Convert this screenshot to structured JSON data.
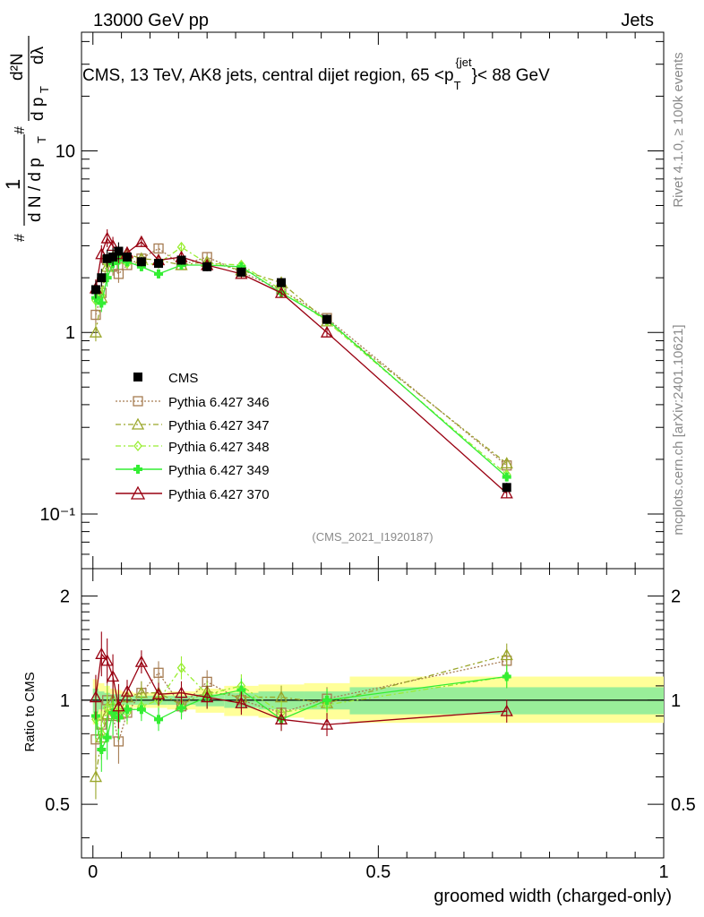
{
  "header": {
    "left": "13000 GeV pp",
    "right": "Jets"
  },
  "side_text": {
    "rivet": "Rivet 4.1.0, ≥ 100k events",
    "mcplots": "mcplots.cern.ch [arXiv:2401.10621]"
  },
  "chart_data": [
    {
      "type": "line",
      "panel": "main",
      "title": "CMS, 13 TeV, AK8 jets, central dijet region, 65 <p_T^{jet}< 88 GeV",
      "title_parts": {
        "pre": "CMS, 13 TeV, AK8 jets, central dijet region, 65 <p",
        "sub": "T",
        "sup": "{jet",
        "post": "}< 88 GeV"
      },
      "watermark": "(CMS_2021_I1920187)",
      "ylabel": "1/(dN/dp_T) d²N/(dp_T dλ)",
      "ylabel_parts": {
        "hash1": "#",
        "one": "1",
        "den": "d N / d p",
        "T": "T",
        "hash2": "#",
        "d2N": "d²N",
        "dpT": "d p",
        "dlambda": "dλ"
      },
      "yscale": "log",
      "ylim": [
        0.05,
        45
      ],
      "ytick_labels": [
        {
          "v": 0.1,
          "t": "10⁻¹"
        },
        {
          "v": 1,
          "t": "1"
        },
        {
          "v": 10,
          "t": "10"
        }
      ],
      "xlim": [
        -0.02,
        1.0
      ],
      "legend_position": "middle-left",
      "x": [
        0.005,
        0.015,
        0.025,
        0.035,
        0.045,
        0.06,
        0.085,
        0.115,
        0.155,
        0.2,
        0.26,
        0.33,
        0.41,
        0.725
      ],
      "series": [
        {
          "name": "CMS",
          "color": "#000000",
          "marker": "square-filled",
          "line": "none",
          "values": [
            1.72,
            2.0,
            2.55,
            2.6,
            2.8,
            2.6,
            2.45,
            2.4,
            2.5,
            2.3,
            2.15,
            1.88,
            1.18,
            0.14
          ]
        },
        {
          "name": "Pythia 6.427 346",
          "color": "#a67c52",
          "marker": "square-open",
          "line": "dotted",
          "values": [
            1.25,
            1.65,
            2.5,
            2.3,
            2.1,
            2.35,
            2.55,
            2.9,
            2.35,
            2.6,
            2.15,
            1.72,
            1.2,
            0.185
          ]
        },
        {
          "name": "Pythia 6.427 347",
          "color": "#9aa62a",
          "marker": "triangle-open",
          "line": "dashdot",
          "values": [
            1.0,
            1.55,
            2.3,
            2.6,
            2.55,
            2.7,
            2.55,
            2.5,
            2.35,
            2.45,
            2.2,
            1.88,
            1.15,
            0.19
          ]
        },
        {
          "name": "Pythia 6.427 348",
          "color": "#99ee33",
          "marker": "diamond-open",
          "line": "dashdot",
          "values": [
            1.5,
            1.6,
            2.4,
            2.5,
            2.6,
            2.4,
            2.35,
            2.4,
            2.95,
            2.4,
            2.35,
            1.72,
            1.15,
            0.165
          ]
        },
        {
          "name": "Pythia 6.427 349",
          "color": "#33ee33",
          "marker": "cross-filled",
          "line": "solid",
          "values": [
            1.55,
            1.45,
            2.0,
            2.4,
            2.5,
            2.45,
            2.3,
            2.1,
            2.35,
            2.35,
            2.3,
            1.65,
            1.18,
            0.16
          ]
        },
        {
          "name": "Pythia 6.427 370",
          "color": "#990011",
          "marker": "triangle-open",
          "line": "solid",
          "values": [
            1.75,
            2.7,
            3.3,
            3.0,
            2.7,
            2.75,
            3.15,
            2.5,
            2.6,
            2.35,
            2.1,
            1.65,
            1.0,
            0.13
          ]
        }
      ]
    },
    {
      "type": "line",
      "panel": "ratio",
      "ylabel": "Ratio to CMS",
      "xlabel": "groomed width (charged-only)",
      "ylim": [
        0.35,
        2.4
      ],
      "yscale": "log",
      "ytick_labels": [
        {
          "v": 0.5,
          "t": "0.5"
        },
        {
          "v": 1,
          "t": "1"
        },
        {
          "v": 2,
          "t": "2"
        }
      ],
      "xtick_labels": [
        {
          "v": 0,
          "t": "0"
        },
        {
          "v": 0.5,
          "t": "0.5"
        },
        {
          "v": 1,
          "t": "1"
        }
      ],
      "xlim": [
        -0.02,
        1.0
      ],
      "x": [
        0.005,
        0.015,
        0.025,
        0.035,
        0.045,
        0.06,
        0.085,
        0.115,
        0.155,
        0.2,
        0.26,
        0.33,
        0.41,
        0.725
      ],
      "bands": [
        {
          "x0": 0.0,
          "x1": 0.01,
          "yellow": [
            0.85,
            1.15
          ],
          "green": [
            0.92,
            1.08
          ]
        },
        {
          "x0": 0.01,
          "x1": 0.02,
          "yellow": [
            0.88,
            1.12
          ],
          "green": [
            0.94,
            1.06
          ]
        },
        {
          "x0": 0.02,
          "x1": 0.03,
          "yellow": [
            0.9,
            1.1
          ],
          "green": [
            0.95,
            1.05
          ]
        },
        {
          "x0": 0.03,
          "x1": 0.04,
          "yellow": [
            0.92,
            1.08
          ],
          "green": [
            0.96,
            1.04
          ]
        },
        {
          "x0": 0.04,
          "x1": 0.05,
          "yellow": [
            0.93,
            1.07
          ],
          "green": [
            0.96,
            1.04
          ]
        },
        {
          "x0": 0.05,
          "x1": 0.07,
          "yellow": [
            0.94,
            1.06
          ],
          "green": [
            0.97,
            1.03
          ]
        },
        {
          "x0": 0.07,
          "x1": 0.1,
          "yellow": [
            0.95,
            1.05
          ],
          "green": [
            0.97,
            1.03
          ]
        },
        {
          "x0": 0.1,
          "x1": 0.13,
          "yellow": [
            0.95,
            1.05
          ],
          "green": [
            0.97,
            1.03
          ]
        },
        {
          "x0": 0.13,
          "x1": 0.18,
          "yellow": [
            0.94,
            1.06
          ],
          "green": [
            0.97,
            1.03
          ]
        },
        {
          "x0": 0.18,
          "x1": 0.23,
          "yellow": [
            0.92,
            1.08
          ],
          "green": [
            0.96,
            1.04
          ]
        },
        {
          "x0": 0.23,
          "x1": 0.29,
          "yellow": [
            0.9,
            1.1
          ],
          "green": [
            0.95,
            1.05
          ]
        },
        {
          "x0": 0.29,
          "x1": 0.37,
          "yellow": [
            0.89,
            1.11
          ],
          "green": [
            0.94,
            1.06
          ]
        },
        {
          "x0": 0.37,
          "x1": 0.45,
          "yellow": [
            0.88,
            1.12
          ],
          "green": [
            0.94,
            1.06
          ]
        },
        {
          "x0": 0.45,
          "x1": 1.0,
          "yellow": [
            0.86,
            1.17
          ],
          "green": [
            0.91,
            1.09
          ]
        }
      ],
      "series": [
        {
          "name": "Pythia 6.427 346",
          "color": "#a67c52",
          "marker": "square-open",
          "line": "dotted",
          "values": [
            0.77,
            0.85,
            1.0,
            0.9,
            0.76,
            0.92,
            1.05,
            1.2,
            0.96,
            1.13,
            1.0,
            0.92,
            1.01,
            1.3
          ]
        },
        {
          "name": "Pythia 6.427 347",
          "color": "#9aa62a",
          "marker": "triangle-open",
          "line": "dashdot",
          "values": [
            0.6,
            0.78,
            0.91,
            1.0,
            0.91,
            1.02,
            1.05,
            1.05,
            0.97,
            1.06,
            1.02,
            1.02,
            0.98,
            1.35
          ]
        },
        {
          "name": "Pythia 6.427 348",
          "color": "#99ee33",
          "marker": "diamond-open",
          "line": "dashdot",
          "values": [
            0.88,
            0.8,
            0.95,
            0.96,
            0.93,
            0.92,
            0.96,
            1.0,
            1.24,
            1.04,
            1.1,
            0.92,
            0.97,
            1.17
          ]
        },
        {
          "name": "Pythia 6.427 349",
          "color": "#33ee33",
          "marker": "cross-filled",
          "line": "solid",
          "values": [
            0.9,
            0.72,
            0.78,
            0.92,
            0.89,
            0.94,
            0.94,
            0.88,
            0.95,
            1.02,
            1.07,
            0.88,
            1.0,
            1.17
          ]
        },
        {
          "name": "Pythia 6.427 370",
          "color": "#990011",
          "marker": "triangle-open",
          "line": "solid",
          "values": [
            1.02,
            1.36,
            1.3,
            1.17,
            0.96,
            1.06,
            1.29,
            1.04,
            1.05,
            1.02,
            0.98,
            0.88,
            0.85,
            0.93
          ]
        }
      ]
    }
  ]
}
